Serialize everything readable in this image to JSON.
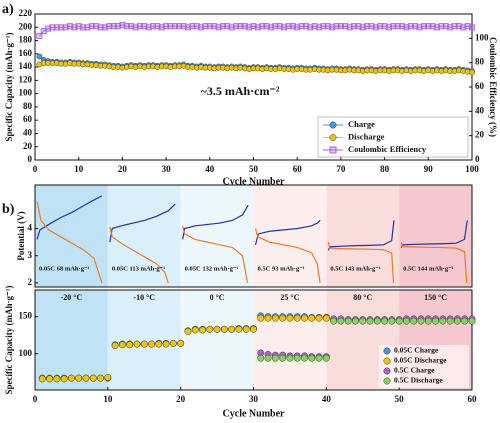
{
  "chart_data": [
    {
      "type": "line",
      "panel_label": "a)",
      "annotation": "~3.5 mAh·cm⁻²",
      "xlabel": "Cycle Number",
      "ylabel": "Specific Capacity (mAh·g⁻¹)",
      "y2label": "Coulombic Efficiency (%)",
      "xlim": [
        0,
        100
      ],
      "xticks": [
        0,
        10,
        20,
        30,
        40,
        50,
        60,
        70,
        80,
        90,
        100
      ],
      "ylim": [
        0,
        220
      ],
      "yticks": [
        0,
        20,
        40,
        60,
        80,
        100,
        120,
        140,
        160,
        180,
        200,
        220
      ],
      "y2lim": [
        0,
        120
      ],
      "y2ticks": [
        0,
        20,
        40,
        60,
        80,
        100
      ],
      "legend": "lower right",
      "x": [
        1,
        2,
        3,
        4,
        5,
        6,
        7,
        8,
        9,
        10,
        11,
        12,
        13,
        14,
        15,
        16,
        17,
        18,
        19,
        20,
        21,
        22,
        23,
        24,
        25,
        26,
        27,
        28,
        29,
        30,
        31,
        32,
        33,
        34,
        35,
        36,
        37,
        38,
        39,
        40,
        41,
        42,
        43,
        44,
        45,
        46,
        47,
        48,
        49,
        50,
        51,
        52,
        53,
        54,
        55,
        56,
        57,
        58,
        59,
        60,
        61,
        62,
        63,
        64,
        65,
        66,
        67,
        68,
        69,
        70,
        71,
        72,
        73,
        74,
        75,
        76,
        77,
        78,
        79,
        80,
        81,
        82,
        83,
        84,
        85,
        86,
        87,
        88,
        89,
        90,
        91,
        92,
        93,
        94,
        95,
        96,
        97,
        98,
        99,
        100
      ],
      "series": [
        {
          "name": "Charge",
          "color": "#3d9be9",
          "marker": "circle",
          "values": [
            156,
            151,
            149,
            148,
            148,
            147,
            147,
            148,
            147,
            147,
            146,
            146,
            145,
            145,
            144,
            144,
            143,
            142,
            142,
            141,
            142,
            143,
            142,
            143,
            142,
            143,
            143,
            142,
            143,
            143,
            142,
            143,
            143,
            144,
            142,
            142,
            141,
            142,
            141,
            141,
            140,
            141,
            141,
            140,
            141,
            140,
            141,
            140,
            139,
            140,
            140,
            139,
            140,
            139,
            139,
            140,
            139,
            139,
            138,
            139,
            139,
            138,
            138,
            139,
            138,
            138,
            137,
            138,
            138,
            137,
            137,
            138,
            137,
            137,
            136,
            137,
            137,
            136,
            137,
            137,
            136,
            137,
            137,
            136,
            137,
            136,
            137,
            137,
            136,
            137,
            136,
            137,
            136,
            137,
            136,
            136,
            137,
            136,
            135,
            134
          ]
        },
        {
          "name": "Discharge",
          "color": "#f5c400",
          "marker": "circle",
          "values": [
            144,
            146,
            146,
            146,
            146,
            145,
            145,
            146,
            145,
            145,
            144,
            144,
            143,
            143,
            142,
            142,
            141,
            140,
            140,
            139,
            140,
            141,
            140,
            141,
            140,
            141,
            141,
            140,
            141,
            141,
            140,
            141,
            141,
            142,
            140,
            140,
            139,
            140,
            139,
            139,
            138,
            139,
            139,
            138,
            139,
            138,
            139,
            138,
            137,
            138,
            138,
            137,
            138,
            137,
            137,
            138,
            137,
            137,
            136,
            137,
            137,
            136,
            136,
            137,
            136,
            136,
            135,
            136,
            136,
            135,
            135,
            136,
            135,
            135,
            134,
            135,
            135,
            134,
            135,
            135,
            134,
            135,
            135,
            134,
            135,
            134,
            135,
            135,
            134,
            135,
            134,
            135,
            134,
            135,
            134,
            134,
            135,
            134,
            133,
            132
          ]
        },
        {
          "name": "Coulombic Efficiency",
          "color": "#a45ee5",
          "marker": "square",
          "axis": "y2",
          "values": [
            102,
            106,
            108,
            109,
            109,
            109,
            109,
            110,
            109,
            110,
            109,
            109,
            110,
            110,
            109,
            109,
            110,
            110,
            110,
            111,
            110,
            110,
            109,
            110,
            110,
            109,
            110,
            110,
            109,
            110,
            110,
            110,
            110,
            110,
            109,
            110,
            110,
            109,
            110,
            110,
            110,
            109,
            110,
            110,
            109,
            110,
            110,
            110,
            109,
            110,
            109,
            110,
            110,
            109,
            110,
            110,
            109,
            110,
            110,
            109,
            110,
            110,
            109,
            110,
            109,
            110,
            110,
            109,
            110,
            110,
            110,
            109,
            110,
            110,
            109,
            110,
            110,
            109,
            110,
            110,
            109,
            110,
            110,
            110,
            109,
            110,
            110,
            109,
            110,
            110,
            110,
            109,
            110,
            110,
            109,
            110,
            110,
            109,
            110,
            109
          ]
        }
      ]
    },
    {
      "type": "profile",
      "panel_label": "b)",
      "ylabel": "Potential (V)",
      "ylim": [
        1.85,
        5.6
      ],
      "yticks": [
        2,
        3,
        4
      ],
      "charge_color": "#2233aa",
      "discharge_color": "#f07a20",
      "segments": [
        {
          "label": "0.05C 68 mAh·g⁻¹",
          "xlim": [
            0,
            70
          ],
          "charge_capacity": [
            0,
            3,
            12,
            24,
            36,
            48,
            58,
            66
          ],
          "charge": [
            3.6,
            3.95,
            4.15,
            4.4,
            4.6,
            4.85,
            5.05,
            5.2
          ],
          "discharge_capacity": [
            0,
            4,
            12,
            24,
            36,
            48,
            58,
            66
          ],
          "discharge": [
            5.0,
            4.3,
            3.95,
            3.7,
            3.45,
            3.2,
            2.9,
            2.0
          ]
        },
        {
          "label": "0.05C 113 mAh·g⁻¹",
          "xlim": [
            0,
            118
          ],
          "charge_capacity": [
            0,
            4,
            20,
            40,
            60,
            80,
            100,
            112
          ],
          "charge": [
            3.5,
            4.0,
            4.1,
            4.2,
            4.3,
            4.45,
            4.65,
            4.9
          ],
          "discharge_capacity": [
            0,
            4,
            20,
            40,
            60,
            80,
            94,
            100
          ],
          "discharge": [
            4.05,
            3.7,
            3.45,
            3.2,
            2.95,
            2.7,
            2.4,
            2.0
          ]
        },
        {
          "label": "0.05C 132 mAh·g⁻¹",
          "xlim": [
            0,
            138
          ],
          "charge_capacity": [
            0,
            4,
            25,
            50,
            75,
            100,
            120,
            131
          ],
          "charge": [
            3.6,
            4.0,
            4.1,
            4.15,
            4.2,
            4.3,
            4.5,
            4.85
          ],
          "discharge_capacity": [
            0,
            4,
            25,
            50,
            75,
            100,
            120,
            130
          ],
          "discharge": [
            4.1,
            3.8,
            3.6,
            3.5,
            3.4,
            3.3,
            3.0,
            2.0
          ]
        },
        {
          "label": "0.5C 93 mAh·g⁻¹",
          "xlim": [
            0,
            98
          ],
          "charge_capacity": [
            0,
            4,
            20,
            40,
            60,
            80,
            88,
            92
          ],
          "charge": [
            3.4,
            3.8,
            3.9,
            3.95,
            4.0,
            4.1,
            4.2,
            4.3
          ],
          "discharge_capacity": [
            0,
            3,
            20,
            40,
            60,
            80,
            88,
            92
          ],
          "discharge": [
            4.0,
            3.7,
            3.5,
            3.4,
            3.3,
            3.1,
            2.7,
            2.0
          ]
        },
        {
          "label": "0.5C 143 mAh·g⁻¹",
          "xlim": [
            0,
            150
          ],
          "charge_capacity": [
            0,
            4,
            30,
            60,
            90,
            120,
            138,
            143
          ],
          "charge": [
            3.2,
            3.33,
            3.35,
            3.37,
            3.38,
            3.4,
            3.55,
            4.3
          ],
          "discharge_capacity": [
            0,
            3,
            30,
            60,
            90,
            120,
            138,
            142
          ],
          "discharge": [
            3.5,
            3.28,
            3.26,
            3.25,
            3.24,
            3.22,
            3.1,
            2.0
          ]
        },
        {
          "label": "0.5C 144 mAh·g⁻¹",
          "xlim": [
            0,
            150
          ],
          "charge_capacity": [
            0,
            4,
            30,
            60,
            90,
            120,
            138,
            144
          ],
          "charge": [
            3.3,
            3.4,
            3.42,
            3.43,
            3.44,
            3.46,
            3.6,
            4.3
          ],
          "discharge_capacity": [
            0,
            3,
            30,
            60,
            90,
            120,
            138,
            143
          ],
          "discharge": [
            3.5,
            3.33,
            3.32,
            3.31,
            3.3,
            3.28,
            3.15,
            2.0
          ]
        }
      ]
    },
    {
      "type": "scatter",
      "xlabel": "Cycle Number",
      "ylabel": "Specific Capacity (mAh·g⁻¹)",
      "xlim": [
        0,
        60
      ],
      "xticks": [
        0,
        10,
        20,
        30,
        40,
        50,
        60
      ],
      "ylim": [
        51,
        186
      ],
      "yticks": [
        100,
        150
      ],
      "legend": "lower right",
      "temperatures": [
        "-20 °C",
        "-10 °C",
        "0 °C",
        "25 °C",
        "80 °C",
        "150 °C"
      ],
      "band_colors": [
        "#bfe3f4",
        "#d9eff9",
        "#ecf7fc",
        "#fdeeee",
        "#f9dcdc",
        "#f5c8cf"
      ],
      "series": [
        {
          "name": "0.05C Charge",
          "color": "#3d9be9",
          "x": [
            1,
            2,
            3,
            4,
            5,
            6,
            7,
            8,
            9,
            10,
            11,
            12,
            13,
            14,
            15,
            16,
            17,
            18,
            19,
            20,
            21,
            22,
            23,
            24,
            25,
            26,
            27,
            28,
            29,
            30,
            31,
            32,
            33,
            34,
            35,
            36,
            37,
            38,
            39,
            40
          ],
          "values": [
            67,
            67,
            67,
            67,
            67,
            67,
            67,
            67,
            67,
            67,
            112,
            113,
            113,
            113,
            113,
            113,
            114,
            114,
            114,
            114,
            131,
            133,
            133,
            133,
            133,
            133,
            133,
            134,
            134,
            134,
            151,
            150,
            150,
            150,
            150,
            150,
            150,
            149,
            149,
            149
          ]
        },
        {
          "name": "0.05C Discharge",
          "color": "#f5c400",
          "x": [
            1,
            2,
            3,
            4,
            5,
            6,
            7,
            8,
            9,
            10,
            11,
            12,
            13,
            14,
            15,
            16,
            17,
            18,
            19,
            20,
            21,
            22,
            23,
            24,
            25,
            26,
            27,
            28,
            29,
            30,
            31,
            32,
            33,
            34,
            35,
            36,
            37,
            38,
            39,
            40
          ],
          "values": [
            66,
            66,
            66,
            66,
            67,
            67,
            67,
            67,
            67,
            68,
            111,
            112,
            112,
            113,
            113,
            113,
            113,
            113,
            114,
            114,
            130,
            132,
            132,
            133,
            133,
            133,
            133,
            133,
            133,
            133,
            148,
            148,
            148,
            148,
            148,
            148,
            148,
            148,
            148,
            148
          ]
        },
        {
          "name": "0.5C Charge",
          "color": "#b15cd6",
          "x": [
            31,
            32,
            33,
            34,
            35,
            36,
            37,
            38,
            39,
            40,
            41,
            42,
            43,
            44,
            45,
            46,
            47,
            48,
            49,
            50,
            51,
            52,
            53,
            54,
            55,
            56,
            57,
            58,
            59,
            60
          ],
          "values": [
            101,
            99,
            98,
            98,
            97,
            97,
            97,
            96,
            96,
            96,
            147,
            147,
            146,
            146,
            146,
            146,
            146,
            146,
            146,
            146,
            147,
            147,
            147,
            147,
            147,
            147,
            147,
            147,
            147,
            147
          ]
        },
        {
          "name": "0.5C Discharge",
          "color": "#7ed957",
          "x": [
            31,
            32,
            33,
            34,
            35,
            36,
            37,
            38,
            39,
            40,
            41,
            42,
            43,
            44,
            45,
            46,
            47,
            48,
            49,
            50,
            51,
            52,
            53,
            54,
            55,
            56,
            57,
            58,
            59,
            60
          ],
          "values": [
            94,
            94,
            94,
            94,
            94,
            94,
            94,
            94,
            94,
            94,
            144,
            144,
            144,
            144,
            144,
            144,
            144,
            144,
            144,
            144,
            144,
            144,
            144,
            144,
            144,
            144,
            144,
            144,
            144,
            144
          ]
        }
      ]
    }
  ]
}
